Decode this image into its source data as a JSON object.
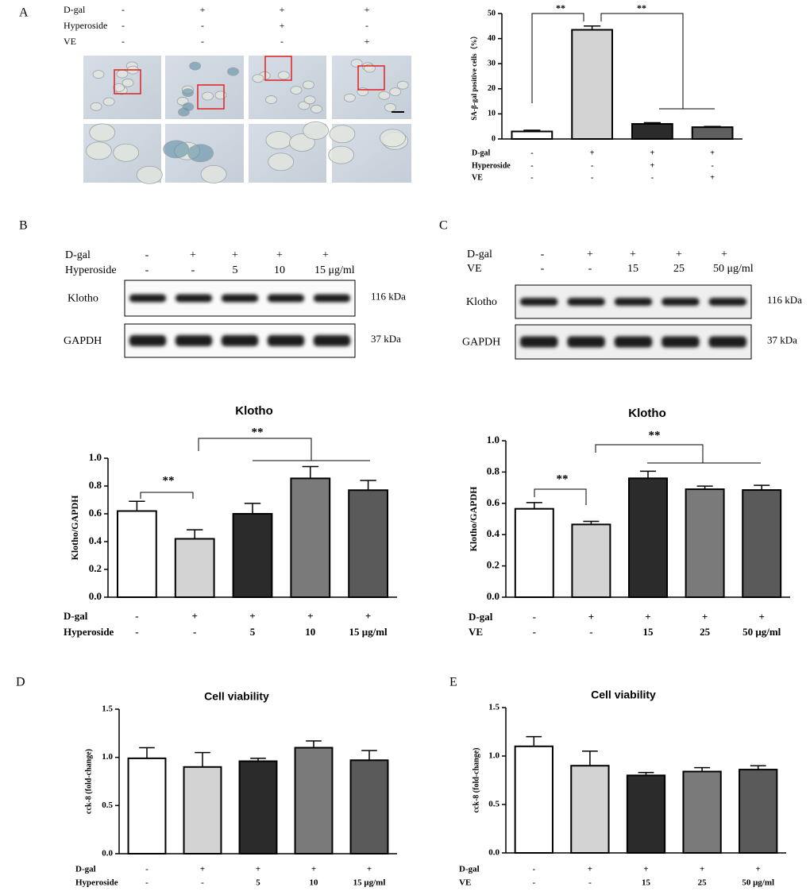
{
  "figure": {
    "labels": [
      "A",
      "B",
      "C",
      "D",
      "E"
    ],
    "micrograph_treatments": [
      {
        "name": "D-gal",
        "levels": [
          "-",
          "+",
          "+",
          "+"
        ]
      },
      {
        "name": "Hyperoside",
        "levels": [
          "-",
          "-",
          "+",
          "-"
        ]
      },
      {
        "name": "VE",
        "levels": [
          "-",
          "-",
          "-",
          "+"
        ]
      }
    ],
    "blots": [
      {
        "treatments": [
          {
            "name": "D-gal",
            "levels": [
              "-",
              "+",
              "+",
              "+",
              "+"
            ]
          },
          {
            "name": "Hyperoside",
            "levels": [
              "-",
              "-",
              "5",
              "10",
              "15 μg/ml"
            ]
          }
        ],
        "bands": [
          {
            "name": "Klotho",
            "size": "116 kDa"
          },
          {
            "name": "GAPDH",
            "size": "37 kDa"
          }
        ]
      },
      {
        "treatments": [
          {
            "name": "D-gal",
            "levels": [
              "-",
              "+",
              "+",
              "+",
              "+"
            ]
          },
          {
            "name": "VE",
            "levels": [
              "-",
              "-",
              "15",
              "25",
              "50 μg/ml"
            ]
          }
        ],
        "bands": [
          {
            "name": "Klotho",
            "size": "116 kDa"
          },
          {
            "name": "GAPDH",
            "size": "37 kDa"
          }
        ]
      }
    ]
  },
  "chart_data": [
    {
      "type": "bar",
      "y_label": "SA-β-gal positive cells（%）",
      "values": [
        3,
        43.5,
        6,
        4.7
      ],
      "errors": [
        0.5,
        1.5,
        0.5,
        0.3
      ],
      "colors": [
        "#ffffff",
        "#d3d3d3",
        "#2b2b2b",
        "#5f5f5f"
      ],
      "ylim": [
        0,
        50
      ],
      "yticks": [
        0,
        10,
        20,
        30,
        40,
        50
      ],
      "treatments": [
        {
          "name": "D-gal",
          "levels": [
            "-",
            "+",
            "+",
            "+"
          ]
        },
        {
          "name": "Hyperoside",
          "levels": [
            "-",
            "-",
            "+",
            "-"
          ]
        },
        {
          "name": "VE",
          "levels": [
            "-",
            "-",
            "-",
            "+"
          ]
        }
      ],
      "annotations": [
        "**",
        "**"
      ]
    },
    {
      "type": "bar",
      "title": "Klotho",
      "y_label": "Klotho/GAPDH",
      "values": [
        0.62,
        0.42,
        0.6,
        0.855,
        0.77
      ],
      "errors": [
        0.07,
        0.065,
        0.075,
        0.085,
        0.07
      ],
      "colors": [
        "#ffffff",
        "#d3d3d3",
        "#2b2b2b",
        "#7a7a7a",
        "#5a5a5a"
      ],
      "ylim": [
        0,
        1
      ],
      "yticks": [
        {
          "value": 0,
          "label": "0.0"
        },
        0.2,
        0.4,
        0.6,
        0.8,
        {
          "value": 1,
          "label": "1.0"
        }
      ],
      "treatments": [
        {
          "name": "D-gal",
          "levels": [
            "-",
            "+",
            "+",
            "+",
            "+"
          ]
        },
        {
          "name": "Hyperoside",
          "levels": [
            "-",
            "-",
            "5",
            "10",
            "15 μg/ml"
          ]
        }
      ],
      "annotations": [
        "**",
        "**"
      ]
    },
    {
      "type": "bar",
      "title": "Klotho",
      "y_label": "Klotho/GAPDH",
      "values": [
        0.565,
        0.465,
        0.76,
        0.69,
        0.685
      ],
      "errors": [
        0.04,
        0.02,
        0.045,
        0.02,
        0.03
      ],
      "colors": [
        "#ffffff",
        "#d3d3d3",
        "#2b2b2b",
        "#7a7a7a",
        "#5a5a5a"
      ],
      "ylim": [
        0,
        1
      ],
      "yticks": [
        {
          "value": 0,
          "label": "0.0"
        },
        0.2,
        0.4,
        0.6,
        0.8,
        {
          "value": 1,
          "label": "1.0"
        }
      ],
      "treatments": [
        {
          "name": "D-gal",
          "levels": [
            "-",
            "+",
            "+",
            "+",
            "+"
          ]
        },
        {
          "name": "VE",
          "levels": [
            "-",
            "-",
            "15",
            "25",
            "50 μg/ml"
          ]
        }
      ],
      "annotations": [
        "**",
        "**"
      ]
    },
    {
      "type": "bar",
      "title": "Cell viability",
      "y_label": "cck-8 (fold-change)",
      "values": [
        0.99,
        0.9,
        0.96,
        1.1,
        0.97
      ],
      "errors": [
        0.11,
        0.15,
        0.03,
        0.07,
        0.1
      ],
      "colors": [
        "#ffffff",
        "#d3d3d3",
        "#2b2b2b",
        "#7a7a7a",
        "#5a5a5a"
      ],
      "ylim": [
        0,
        1.5
      ],
      "yticks": [
        {
          "value": 0,
          "label": "0.0"
        },
        0.5,
        {
          "value": 1,
          "label": "1.0"
        },
        1.5
      ],
      "treatments": [
        {
          "name": "D-gal",
          "levels": [
            "-",
            "+",
            "+",
            "+",
            "+"
          ]
        },
        {
          "name": "Hyperoside",
          "levels": [
            "-",
            "-",
            "5",
            "10",
            "15 μg/ml"
          ]
        }
      ]
    },
    {
      "type": "bar",
      "title": "Cell viability",
      "y_label": "cck-8 (fold-change)",
      "values": [
        1.1,
        0.9,
        0.8,
        0.84,
        0.86
      ],
      "errors": [
        0.1,
        0.15,
        0.03,
        0.04,
        0.04
      ],
      "colors": [
        "#ffffff",
        "#d3d3d3",
        "#2b2b2b",
        "#7a7a7a",
        "#5a5a5a"
      ],
      "ylim": [
        0,
        1.5
      ],
      "yticks": [
        {
          "value": 0,
          "label": "0.0"
        },
        0.5,
        {
          "value": 1,
          "label": "1.0"
        },
        1.5
      ],
      "treatments": [
        {
          "name": "D-gal",
          "levels": [
            "-",
            "+",
            "+",
            "+",
            "+"
          ]
        },
        {
          "name": "VE",
          "levels": [
            "-",
            "-",
            "15",
            "25",
            "50 μg/ml"
          ]
        }
      ]
    }
  ]
}
